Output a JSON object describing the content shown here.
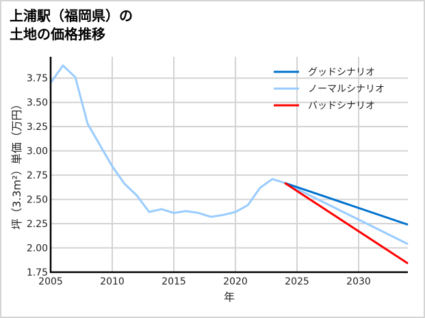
{
  "title": {
    "line1": "上浦駅（福岡県）の",
    "line2": "土地の価格推移"
  },
  "colors": {
    "good": "#0072CE",
    "normal": "#99CCFF",
    "bad": "#FF0000",
    "grid": "#d3d3d3",
    "axis": "#000000"
  },
  "chart_data": {
    "type": "line",
    "title": "上浦駅（福岡県）の土地の価格推移",
    "xlabel": "年",
    "ylabel": "坪（3.3m²）単価（万円）",
    "xlim": [
      2005,
      2034
    ],
    "ylim": [
      1.75,
      3.97
    ],
    "xticks": [
      2005,
      2010,
      2015,
      2020,
      2025,
      2030
    ],
    "xtick_labels": [
      "2005",
      "2010",
      "2015",
      "2020",
      "2025",
      "2030"
    ],
    "yticks": [
      1.75,
      2.0,
      2.25,
      2.5,
      2.75,
      3.0,
      3.25,
      3.5,
      3.75
    ],
    "ytick_labels": [
      "1.75",
      "2.00",
      "2.25",
      "2.50",
      "2.75",
      "3.00",
      "3.25",
      "3.50",
      "3.75"
    ],
    "grid": true,
    "legend_position": "upper right",
    "series": [
      {
        "name": "グッドシナリオ",
        "key": "good",
        "x": [
          2024,
          2034
        ],
        "values": [
          2.67,
          2.24
        ]
      },
      {
        "name": "ノーマルシナリオ",
        "key": "normal",
        "x": [
          2005,
          2006,
          2007,
          2008,
          2009,
          2010,
          2011,
          2012,
          2013,
          2014,
          2015,
          2016,
          2017,
          2018,
          2019,
          2020,
          2021,
          2022,
          2023,
          2024,
          2034
        ],
        "values": [
          3.7,
          3.88,
          3.76,
          3.28,
          3.06,
          2.84,
          2.66,
          2.54,
          2.37,
          2.4,
          2.36,
          2.38,
          2.36,
          2.32,
          2.34,
          2.37,
          2.44,
          2.62,
          2.71,
          2.67,
          2.04
        ]
      },
      {
        "name": "バッドシナリオ",
        "key": "bad",
        "x": [
          2024,
          2034
        ],
        "values": [
          2.67,
          1.84
        ]
      }
    ]
  },
  "legend": {
    "items": [
      {
        "label": "グッドシナリオ",
        "key": "good"
      },
      {
        "label": "ノーマルシナリオ",
        "key": "normal"
      },
      {
        "label": "バッドシナリオ",
        "key": "bad"
      }
    ]
  }
}
